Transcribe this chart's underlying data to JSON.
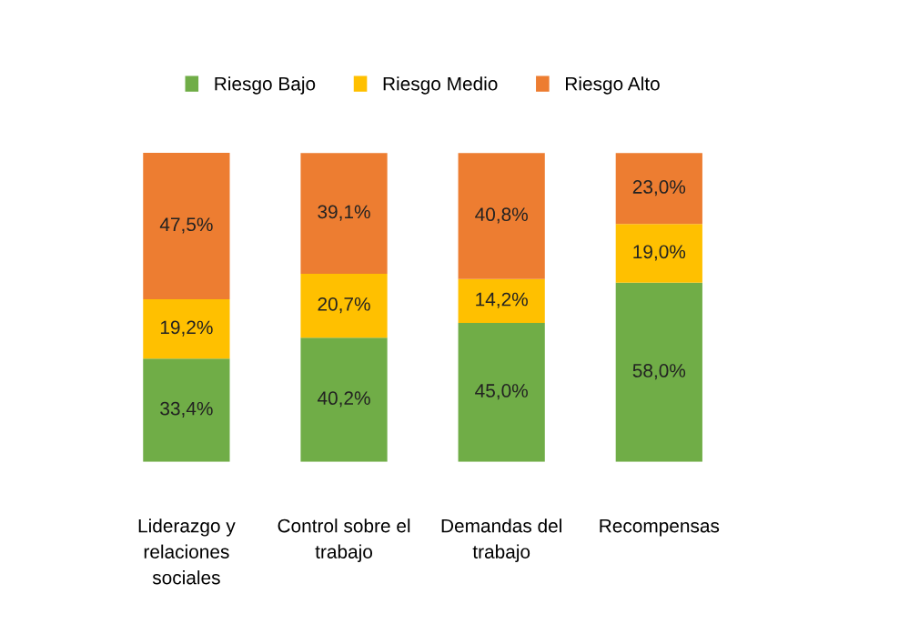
{
  "chart_data": {
    "type": "bar",
    "stacked": true,
    "data_labels": true,
    "legend": "top",
    "grid": false,
    "categories": [
      "Liderazgo y\nrelaciones\nsociales",
      "Control sobre el\ntrabajo",
      "Demandas del\ntrabajo",
      "Recompensas"
    ],
    "series": [
      {
        "name": "Riesgo Bajo",
        "color": "#70ad47",
        "values": [
          33.4,
          40.2,
          45.0,
          58.0
        ],
        "value_labels": [
          "33,4%",
          "40,2%",
          "45,0%",
          "58,0%"
        ]
      },
      {
        "name": "Riesgo Medio",
        "color": "#ffc000",
        "values": [
          19.2,
          20.7,
          14.2,
          19.0
        ],
        "value_labels": [
          "19,2%",
          "20,7%",
          "14,2%",
          "19,0%"
        ]
      },
      {
        "name": "Riesgo Alto",
        "color": "#ed7d31",
        "values": [
          47.5,
          39.1,
          40.8,
          23.0
        ],
        "value_labels": [
          "47,5%",
          "39,1%",
          "40,8%",
          "23,0%"
        ]
      }
    ]
  }
}
